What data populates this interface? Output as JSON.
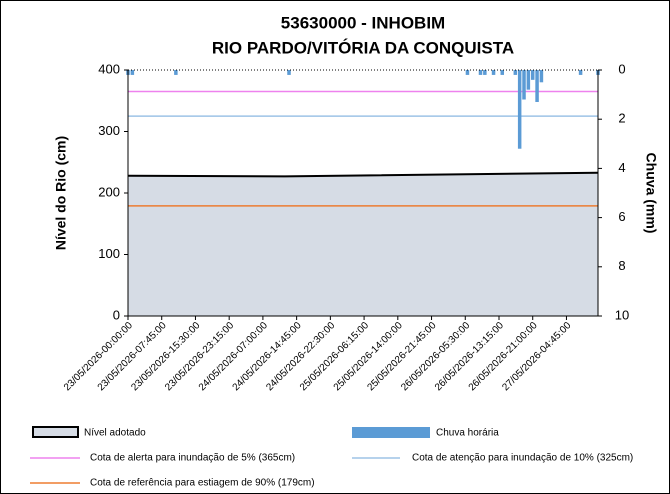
{
  "chart_data": {
    "type": "area",
    "title": [
      "53630000 - INHOBIM",
      "RIO PARDO/VITÓRIA DA CONQUISTA"
    ],
    "y_label": "Nível do Rio (cm)",
    "y2_label": "Chuva (mm)",
    "xlim": [
      "23/05/2026-00:00:00",
      "27/05/2026-12:00:00"
    ],
    "xticks": [
      "23/05/2026-00:00:00",
      "23/05/2026-07:45:00",
      "23/05/2026-15:30:00",
      "23/05/2026-23:15:00",
      "24/05/2026-07:00:00",
      "24/05/2026-14:45:00",
      "24/05/2026-22:30:00",
      "25/05/2026-06:15:00",
      "25/05/2026-14:00:00",
      "25/05/2026-21:45:00",
      "26/05/2026-05:30:00",
      "26/05/2026-13:15:00",
      "26/05/2026-21:00:00",
      "27/05/2026-04:45:00"
    ],
    "ylim": [
      0,
      400
    ],
    "yticks": [
      0,
      100,
      200,
      300,
      400
    ],
    "y2lim": [
      0,
      10
    ],
    "y2ticks": [
      0,
      2,
      4,
      6,
      8,
      10
    ],
    "y2_inverted": true,
    "series": [
      {
        "name": "Nível adotado",
        "type": "area",
        "color": "#d6dce5",
        "x": [
          "23/05/2026-00:00:00",
          "24/05/2026-12:00:00",
          "27/05/2026-12:00:00"
        ],
        "values": [
          228,
          227,
          233
        ]
      },
      {
        "name": "Chuva horária",
        "type": "bar",
        "axis": "y2",
        "color": "#5b9bd5",
        "x": [
          "23/05/2026-00:00:00",
          "23/05/2026-01:00:00",
          "23/05/2026-11:00:00",
          "24/05/2026-13:00:00",
          "26/05/2026-06:00:00",
          "26/05/2026-09:00:00",
          "26/05/2026-10:00:00",
          "26/05/2026-12:00:00",
          "26/05/2026-14:00:00",
          "26/05/2026-17:00:00",
          "26/05/2026-18:00:00",
          "26/05/2026-19:00:00",
          "26/05/2026-20:00:00",
          "26/05/2026-21:00:00",
          "26/05/2026-22:00:00",
          "26/05/2026-23:00:00",
          "27/05/2026-08:00:00",
          "27/05/2026-12:00:00"
        ],
        "values": [
          0.2,
          0.2,
          0.2,
          0.2,
          0.2,
          0.2,
          0.2,
          0.2,
          0.2,
          0.2,
          3.2,
          1.2,
          0.8,
          0.4,
          1.3,
          0.5,
          0.2,
          0.2
        ]
      }
    ],
    "reference_lines": [
      {
        "name": "Cota de alerta para inundação de 5% (365cm)",
        "value": 365,
        "color": "#ee82ee"
      },
      {
        "name": "Cota de atenção para inundação de 10% (325cm)",
        "value": 325,
        "color": "#9dc3e6"
      },
      {
        "name": "Cota de referência para estiagem de 90% (179cm)",
        "value": 179,
        "color": "#ed7d31"
      }
    ]
  }
}
